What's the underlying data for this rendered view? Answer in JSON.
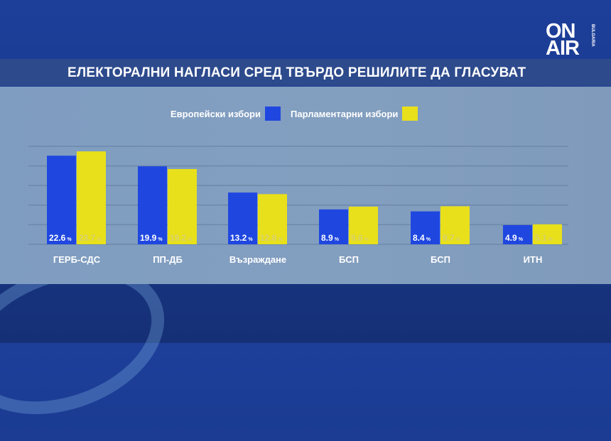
{
  "logo": {
    "main1": "ON",
    "main2": "AIR",
    "sub": "BULGARIA"
  },
  "chart_data": {
    "type": "bar",
    "title": "ЕЛЕКТОРАЛНИ НАГЛАСИ СРЕД ТВЪРДО РЕШИЛИТЕ ДА ГЛАСУВАТ",
    "categories": [
      "ГЕРБ-СДС",
      "ПП-ДБ",
      "Възраждане",
      "БСП",
      "БСП",
      "ИТН"
    ],
    "series": [
      {
        "name": "Европейски избори",
        "color": "#1f47e0",
        "values": [
          22.6,
          19.9,
          13.2,
          8.9,
          8.4,
          4.9
        ]
      },
      {
        "name": "Парламентарни избори",
        "color": "#e8e01a",
        "values": [
          23.7,
          19.2,
          12.8,
          9.6,
          9.7,
          5.1
        ]
      }
    ],
    "unit": "%",
    "ylim": [
      0,
      25
    ],
    "grid": true,
    "legend": "top-center"
  }
}
